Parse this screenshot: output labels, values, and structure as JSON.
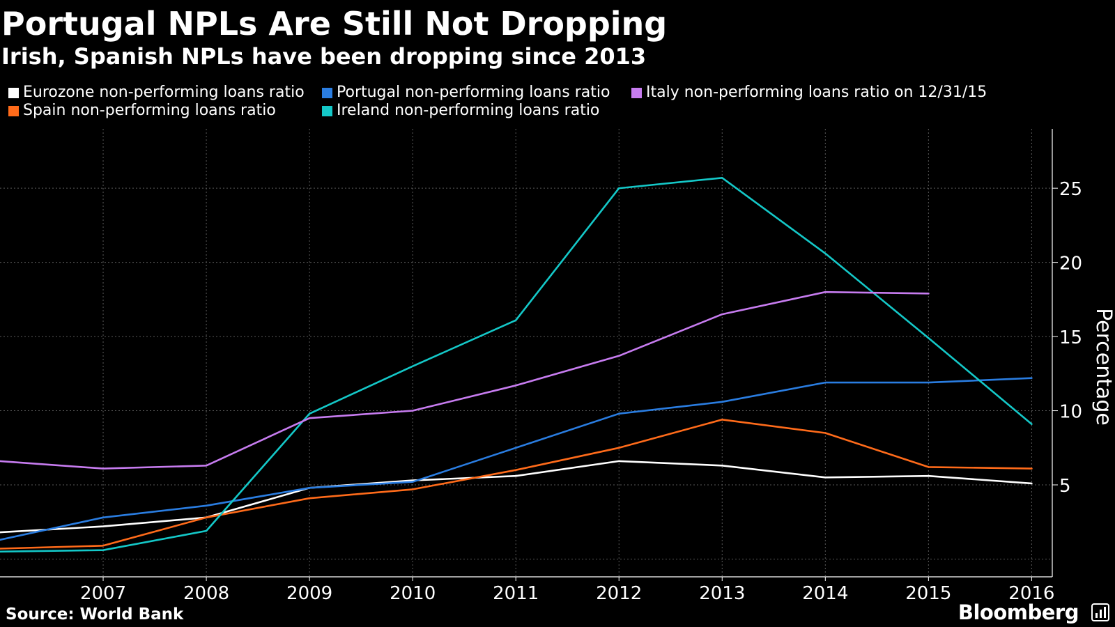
{
  "header": {
    "title": "Portugal NPLs Are Still Not Dropping",
    "subtitle": "Irish, Spanish NPLs have been dropping since 2013"
  },
  "footer": {
    "source": "Source: World Bank",
    "brand": "Bloomberg"
  },
  "chart_data": {
    "type": "line",
    "title": "Portugal NPLs Are Still Not Dropping",
    "subtitle": "Irish, Spanish NPLs have been dropping since 2013",
    "xlabel": "",
    "ylabel": "Percentage",
    "x": [
      2006,
      2007,
      2008,
      2009,
      2010,
      2011,
      2012,
      2013,
      2014,
      2015,
      2016
    ],
    "x_ticks": [
      2007,
      2008,
      2009,
      2010,
      2011,
      2012,
      2013,
      2014,
      2015,
      2016
    ],
    "y_ticks": [
      5,
      10,
      15,
      20,
      25
    ],
    "xlim": [
      2006,
      2016.2
    ],
    "ylim": [
      -1.2,
      29
    ],
    "grid": true,
    "legend_position": "top",
    "series": [
      {
        "name": "Eurozone non-performing loans ratio",
        "color": "#ffffff",
        "values": [
          1.8,
          2.2,
          2.8,
          4.8,
          5.3,
          5.6,
          6.6,
          6.3,
          5.5,
          5.6,
          5.1
        ]
      },
      {
        "name": "Spain non-performing loans ratio",
        "color": "#ff6b1a",
        "values": [
          0.7,
          0.9,
          2.8,
          4.1,
          4.7,
          6.0,
          7.5,
          9.4,
          8.5,
          6.2,
          6.1
        ]
      },
      {
        "name": "Portugal non-performing loans ratio",
        "color": "#2a7de1",
        "values": [
          1.3,
          2.8,
          3.6,
          4.8,
          5.2,
          7.5,
          9.8,
          10.6,
          11.9,
          11.9,
          12.2
        ]
      },
      {
        "name": "Ireland non-performing loans ratio",
        "color": "#14c8c8",
        "values": [
          0.5,
          0.6,
          1.9,
          9.8,
          13.0,
          16.1,
          25.0,
          25.7,
          20.6,
          14.9,
          9.1
        ]
      },
      {
        "name": "Italy non-performing loans ratio on 12/31/15",
        "color": "#c77cf0",
        "values": [
          6.6,
          6.1,
          6.3,
          9.5,
          10.0,
          11.7,
          13.7,
          16.5,
          18.0,
          17.9,
          null
        ]
      }
    ]
  },
  "legend": [
    {
      "label": "Eurozone non-performing loans ratio",
      "color": "#ffffff"
    },
    {
      "label": "Portugal non-performing loans ratio",
      "color": "#2a7de1"
    },
    {
      "label": "Italy non-performing loans ratio on 12/31/15",
      "color": "#c77cf0"
    },
    {
      "label": "Spain non-performing loans ratio",
      "color": "#ff6b1a"
    },
    {
      "label": "Ireland non-performing loans ratio",
      "color": "#14c8c8"
    }
  ]
}
